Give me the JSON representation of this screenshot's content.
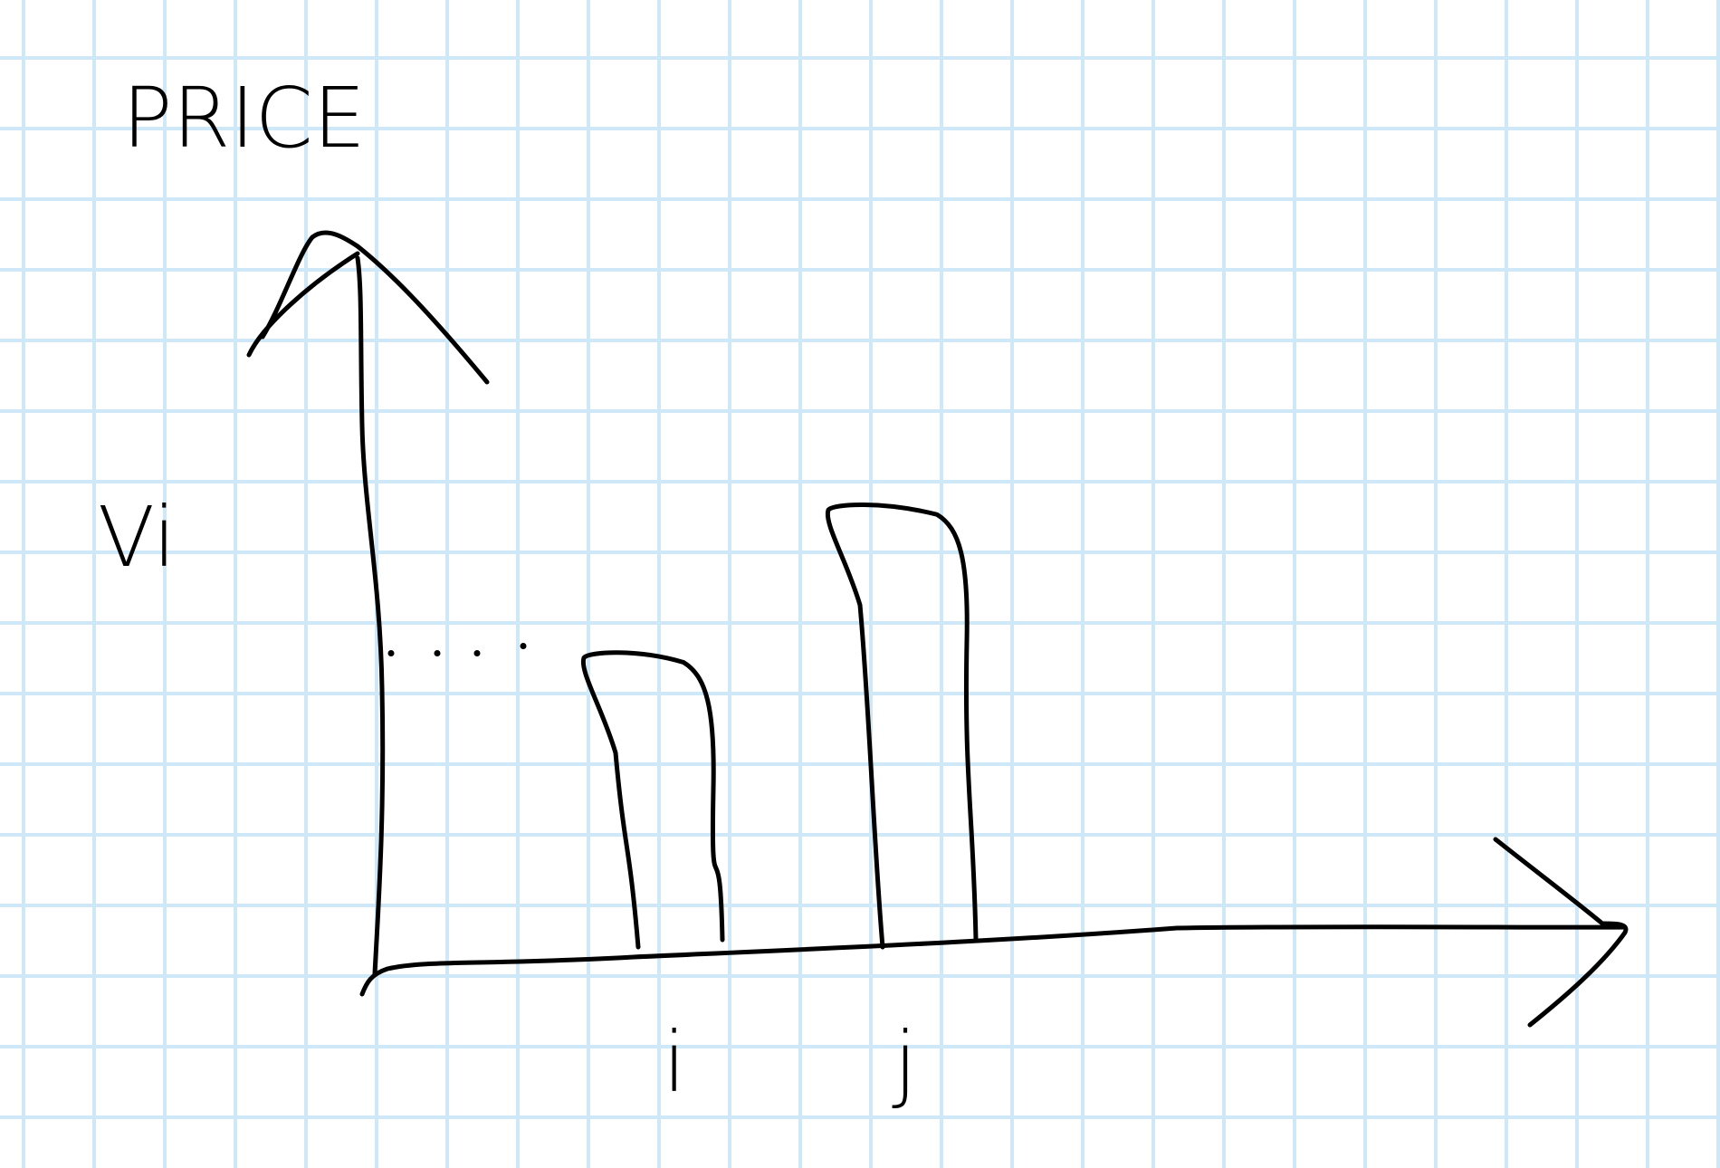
{
  "chart_data": {
    "type": "bar",
    "ylabel": "PRICE",
    "categories": [
      "i",
      "j"
    ],
    "values": [
      0.5,
      0.75
    ],
    "ylim": [
      0,
      1
    ],
    "y_reference_label": "Vi",
    "grid": true,
    "style": "hand-drawn sketch on graph paper",
    "colors": {
      "ink": "#000000",
      "grid": "#cfe8f7",
      "paper": "#ffffff"
    }
  }
}
